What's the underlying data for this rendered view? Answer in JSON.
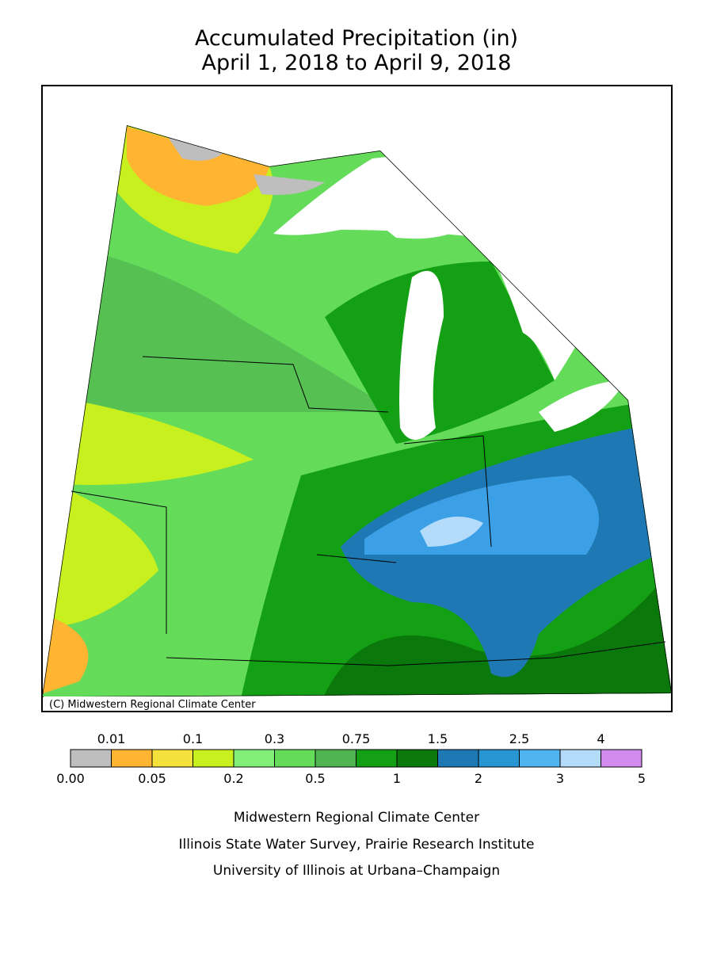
{
  "title": [
    "Accumulated Precipitation (in)",
    "April 1, 2018 to April 9, 2018"
  ],
  "map": {
    "credit": "(C) Midwestern Regional Climate Center"
  },
  "legend": {
    "boundaries": [
      "0.00",
      "0.01",
      "0.05",
      "0.1",
      "0.2",
      "0.3",
      "0.5",
      "0.75",
      "1",
      "1.5",
      "2",
      "2.5",
      "3",
      "4",
      "5"
    ],
    "colors": [
      "#bebebe",
      "#ffb432",
      "#f5e13c",
      "#c8f01e",
      "#82f078",
      "#64dc5a",
      "#50b450",
      "#14a014",
      "#0a780a",
      "#1e78b4",
      "#2896d2",
      "#50b4f0",
      "#b4dcfa",
      "#d28cf0"
    ]
  },
  "footer": [
    "Midwestern Regional Climate Center",
    "Illinois State Water Survey, Prairie Research Institute",
    "University of Illinois at Urbana–Champaign"
  ]
}
